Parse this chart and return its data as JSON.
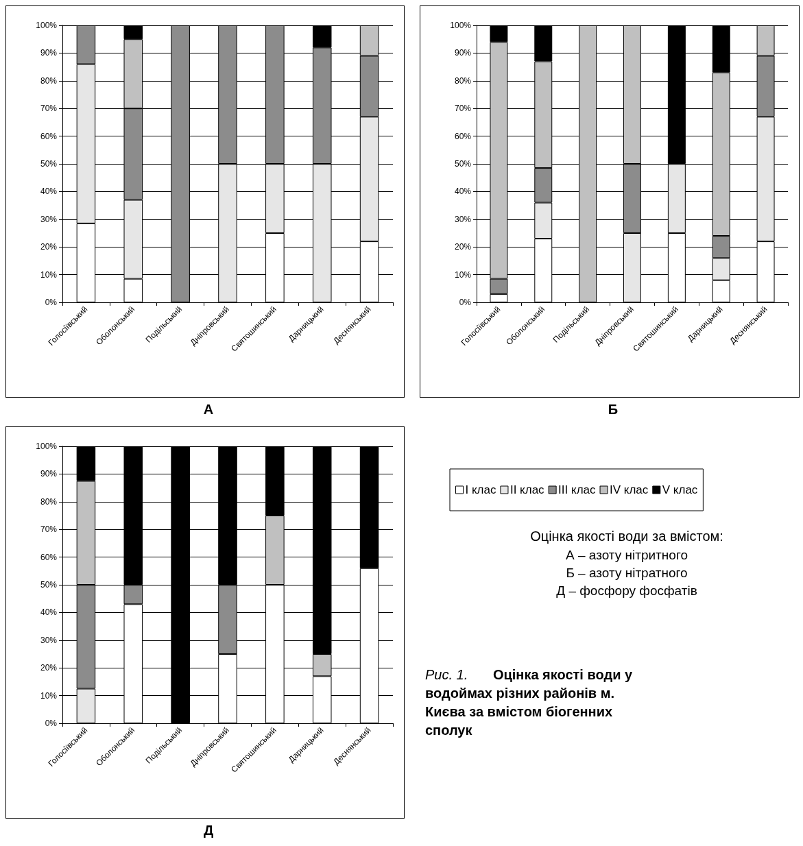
{
  "chart_data": [
    {
      "type": "bar",
      "title": "А",
      "stacked": true,
      "grid": "y",
      "legend": false,
      "categories": [
        "Голосіївський",
        "Оболонський",
        "Подільський",
        "Дніпровський",
        "Святошинський",
        "Дарницький",
        "Деснянський"
      ],
      "ylim": [
        0,
        100
      ],
      "yticks": [
        {
          "value": 0,
          "label": "0%"
        },
        {
          "value": 10,
          "label": "10%"
        },
        {
          "value": 20,
          "label": "20%"
        },
        {
          "value": 30,
          "label": "30%"
        },
        {
          "value": 40,
          "label": "40%"
        },
        {
          "value": 50,
          "label": "50%"
        },
        {
          "value": 60,
          "label": "60%"
        },
        {
          "value": 70,
          "label": "70%"
        },
        {
          "value": 80,
          "label": "80%"
        },
        {
          "value": 90,
          "label": "90%"
        },
        {
          "value": 100,
          "label": "100%"
        }
      ],
      "series": [
        {
          "name": "I клас",
          "color": "#ffffff",
          "values": [
            28.5,
            8.5,
            0,
            0,
            25,
            0,
            22
          ]
        },
        {
          "name": "II клас",
          "color": "#e6e6e6",
          "values": [
            57.5,
            28.5,
            0,
            50,
            25,
            50,
            45
          ]
        },
        {
          "name": "III клас",
          "color": "#8c8c8c",
          "values": [
            14,
            33,
            100,
            50,
            50,
            42,
            22
          ]
        },
        {
          "name": "IV клас",
          "color": "#c0c0c0",
          "values": [
            0,
            25,
            0,
            0,
            0,
            0,
            11
          ]
        },
        {
          "name": "V клас",
          "color": "#000000",
          "values": [
            0,
            5,
            0,
            0,
            0,
            8,
            0
          ]
        }
      ]
    },
    {
      "type": "bar",
      "title": "Б",
      "stacked": true,
      "grid": "y",
      "legend": false,
      "categories": [
        "Голосіївський",
        "Оболонський",
        "Подільський",
        "Дніпровський",
        "Святошинський",
        "Дарницький",
        "Деснянський"
      ],
      "ylim": [
        0,
        100
      ],
      "yticks": [
        {
          "value": 0,
          "label": "0%"
        },
        {
          "value": 10,
          "label": "10%"
        },
        {
          "value": 20,
          "label": "20%"
        },
        {
          "value": 30,
          "label": "30%"
        },
        {
          "value": 40,
          "label": "40%"
        },
        {
          "value": 50,
          "label": "50%"
        },
        {
          "value": 60,
          "label": "60%"
        },
        {
          "value": 70,
          "label": "70%"
        },
        {
          "value": 80,
          "label": "80%"
        },
        {
          "value": 90,
          "label": "90%"
        },
        {
          "value": 100,
          "label": "100%"
        }
      ],
      "series": [
        {
          "name": "I клас",
          "color": "#ffffff",
          "values": [
            3,
            23,
            0,
            0,
            25,
            8,
            22
          ]
        },
        {
          "name": "II клас",
          "color": "#e6e6e6",
          "values": [
            0,
            13,
            0,
            25,
            25,
            8,
            45
          ]
        },
        {
          "name": "III клас",
          "color": "#8c8c8c",
          "values": [
            5.5,
            12.5,
            0,
            25,
            0,
            8,
            22
          ]
        },
        {
          "name": "IV клас",
          "color": "#c0c0c0",
          "values": [
            85.5,
            38.5,
            100,
            50,
            0,
            59,
            11
          ]
        },
        {
          "name": "V клас",
          "color": "#000000",
          "values": [
            6,
            13,
            0,
            0,
            50,
            17,
            0
          ]
        }
      ]
    },
    {
      "type": "bar",
      "title": "Д",
      "stacked": true,
      "grid": "y",
      "legend": "right",
      "categories": [
        "Голосіївський",
        "Оболонський",
        "Подільський",
        "Дніпровський",
        "Святошинський",
        "Дарницький",
        "Деснянський"
      ],
      "ylim": [
        0,
        100
      ],
      "yticks": [
        {
          "value": 0,
          "label": "0%"
        },
        {
          "value": 10,
          "label": "10%"
        },
        {
          "value": 20,
          "label": "20%"
        },
        {
          "value": 30,
          "label": "30%"
        },
        {
          "value": 40,
          "label": "40%"
        },
        {
          "value": 50,
          "label": "50%"
        },
        {
          "value": 60,
          "label": "60%"
        },
        {
          "value": 70,
          "label": "70%"
        },
        {
          "value": 80,
          "label": "80%"
        },
        {
          "value": 90,
          "label": "90%"
        },
        {
          "value": 100,
          "label": "100%"
        }
      ],
      "series": [
        {
          "name": "I клас",
          "color": "#ffffff",
          "values": [
            0,
            43,
            0,
            25,
            50,
            17,
            56
          ]
        },
        {
          "name": "II клас",
          "color": "#e6e6e6",
          "values": [
            12.5,
            0,
            0,
            0,
            0,
            0,
            0
          ]
        },
        {
          "name": "III клас",
          "color": "#8c8c8c",
          "values": [
            37.5,
            7,
            0,
            25,
            0,
            0,
            0
          ]
        },
        {
          "name": "IV клас",
          "color": "#c0c0c0",
          "values": [
            37.5,
            0,
            0,
            0,
            25,
            8,
            0
          ]
        },
        {
          "name": "V клас",
          "color": "#000000",
          "values": [
            12.5,
            50,
            100,
            50,
            25,
            75,
            44
          ]
        }
      ],
      "annotations": [
        "Оцінка якості води за вмістом:",
        "А – азоту нітритного",
        "Б – азоту нітратного",
        "Д – фосфору фосфатів",
        "Рис. 1.",
        "Оцінка якості води у водоймах різних районів м. Києва за вмістом біогенних сполук"
      ]
    }
  ]
}
